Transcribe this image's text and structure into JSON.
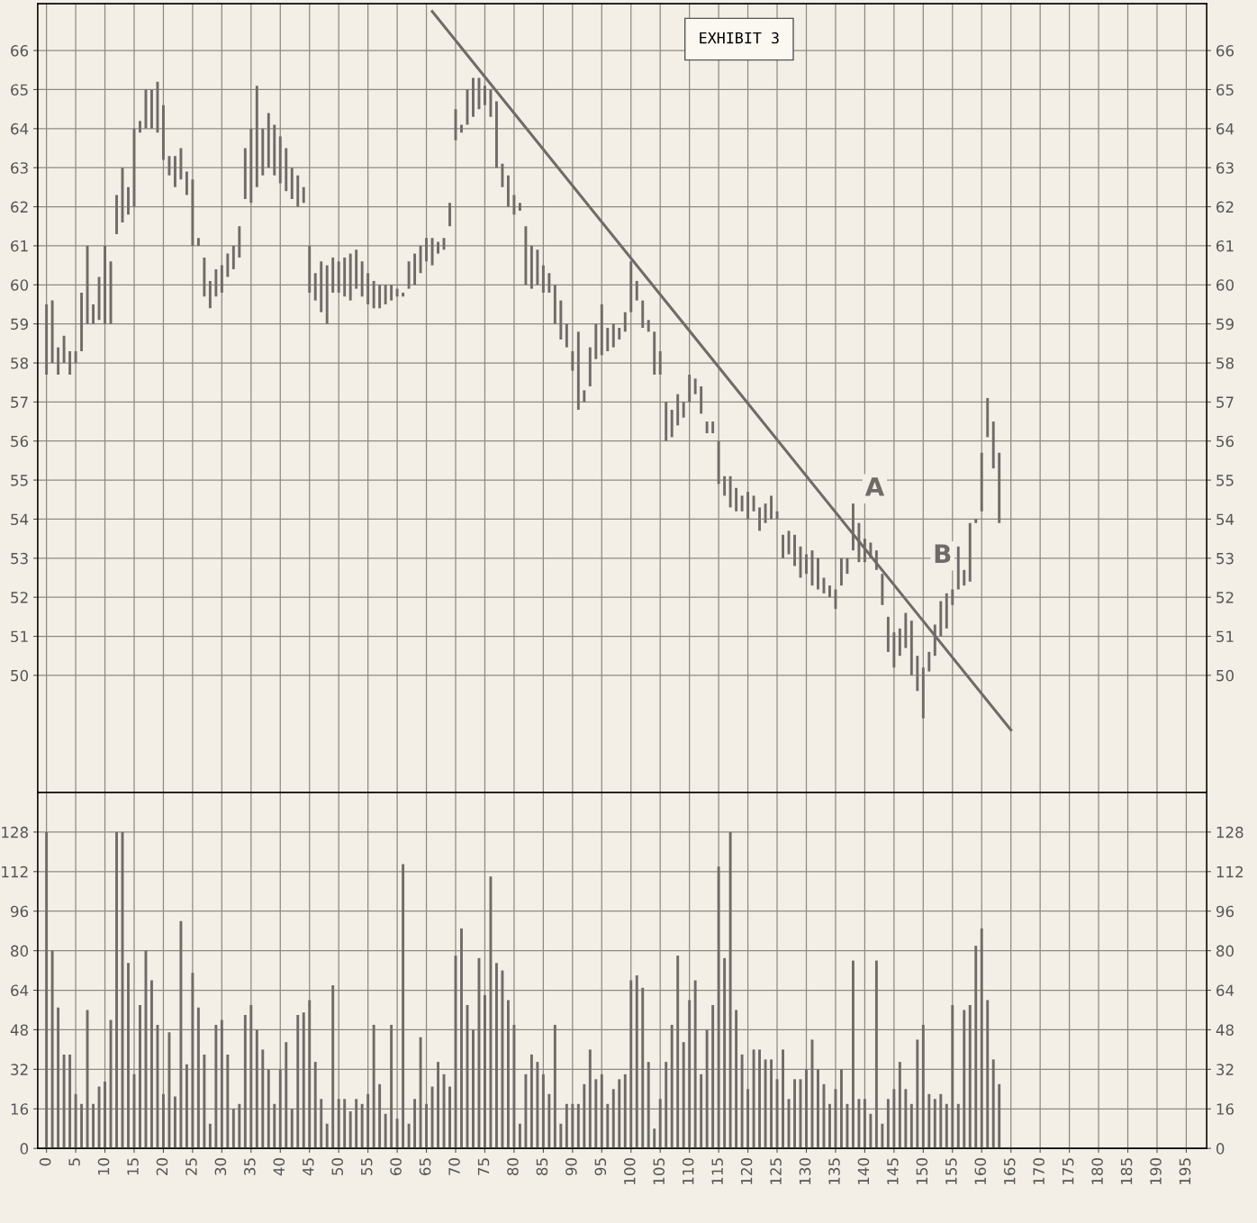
{
  "chart_data": [
    {
      "type": "bar",
      "tick_labels": "y",
      "grid": true,
      "annotations": [
        "EXHIBIT 3",
        "A",
        "B"
      ],
      "xlim": [
        -1.5,
        198.5
      ],
      "xticks": [
        0,
        5,
        10,
        15,
        20,
        25,
        30,
        35,
        40,
        45,
        50,
        55,
        60,
        65,
        70,
        75,
        80,
        85,
        90,
        95,
        100,
        105,
        110,
        115,
        120,
        125,
        130,
        135,
        140,
        145,
        150,
        155,
        160,
        165,
        170,
        175,
        180,
        185,
        190,
        195
      ],
      "ylim": [
        47.0,
        67.2
      ],
      "yticks": [
        50,
        51,
        52,
        53,
        54,
        55,
        56,
        57,
        58,
        59,
        60,
        61,
        62,
        63,
        64,
        65,
        66
      ],
      "y2lim": [
        47.0,
        67.2
      ],
      "y2ticks": [
        50,
        51,
        52,
        53,
        54,
        55,
        56,
        57,
        58,
        59,
        60,
        61,
        62,
        63,
        64,
        65,
        66
      ],
      "series": [
        {
          "color": "#6f6b68",
          "x": [
            0,
            1,
            2,
            3,
            4,
            5,
            6,
            7,
            8,
            9,
            10,
            11,
            12,
            13,
            14,
            15,
            16,
            17,
            18,
            19,
            20,
            21,
            22,
            23,
            24,
            25,
            26,
            27,
            28,
            29,
            30,
            31,
            32,
            33,
            34,
            35,
            36,
            37,
            38,
            39,
            40,
            41,
            42,
            43,
            44,
            45,
            46,
            47,
            48,
            49,
            50,
            51,
            52,
            53,
            54,
            55,
            56,
            57,
            58,
            59,
            60,
            61,
            62,
            63,
            64,
            65,
            66,
            67,
            68,
            69,
            70,
            71,
            72,
            73,
            74,
            75,
            76,
            77,
            78,
            79,
            80,
            81,
            82,
            83,
            84,
            85,
            86,
            87,
            88,
            89,
            90,
            91,
            92,
            93,
            94,
            95,
            96,
            97,
            98,
            99,
            100,
            101,
            102,
            103,
            104,
            105,
            106,
            107,
            108,
            109,
            110,
            111,
            112,
            113,
            114,
            115,
            116,
            117,
            118,
            119,
            120,
            121,
            122,
            123,
            124,
            125,
            126,
            127,
            128,
            129,
            130,
            131,
            132,
            133,
            134,
            135,
            136,
            137,
            138,
            139,
            140,
            141,
            142,
            143,
            144,
            145,
            146,
            147,
            148,
            149,
            150,
            151,
            152,
            153,
            154,
            155,
            156,
            157,
            158,
            159,
            160,
            161,
            162,
            163
          ],
          "base": [
            57.7,
            58.0,
            57.7,
            58.0,
            57.7,
            58.0,
            58.3,
            59.0,
            59.0,
            59.1,
            59.0,
            59.0,
            61.3,
            61.6,
            61.8,
            62.0,
            63.9,
            64.0,
            64.0,
            63.9,
            63.2,
            62.8,
            62.5,
            62.7,
            62.3,
            61.0,
            61.0,
            59.7,
            59.4,
            59.7,
            59.8,
            60.2,
            60.4,
            60.7,
            62.2,
            62.1,
            62.5,
            62.8,
            63.0,
            62.8,
            62.6,
            62.4,
            62.2,
            62.0,
            62.1,
            59.8,
            59.6,
            59.3,
            59.0,
            59.8,
            59.8,
            59.7,
            59.6,
            59.9,
            59.7,
            59.5,
            59.4,
            59.4,
            59.5,
            59.6,
            59.7,
            59.7,
            59.9,
            60.0,
            60.3,
            60.6,
            60.5,
            60.8,
            60.9,
            61.5,
            63.7,
            63.9,
            64.1,
            64.3,
            64.5,
            64.6,
            64.3,
            63.0,
            62.5,
            62.0,
            61.8,
            61.9,
            60.0,
            59.9,
            60.0,
            59.8,
            59.8,
            59.0,
            58.6,
            58.4,
            57.8,
            56.8,
            57.0,
            57.4,
            58.1,
            58.2,
            58.3,
            58.4,
            58.6,
            58.8,
            59.3,
            59.6,
            58.9,
            58.8,
            57.7,
            57.7,
            56.0,
            56.1,
            56.4,
            56.6,
            57.0,
            57.2,
            56.7,
            56.2,
            56.2,
            54.9,
            54.6,
            54.3,
            54.2,
            54.2,
            54.0,
            54.2,
            53.7,
            53.9,
            54.0,
            54.0,
            53.0,
            53.1,
            52.8,
            52.5,
            52.6,
            52.3,
            52.2,
            52.1,
            52.0,
            51.7,
            52.3,
            52.6,
            53.2,
            52.9,
            52.9,
            53.0,
            52.7,
            51.8,
            50.6,
            50.2,
            50.5,
            50.7,
            50.0,
            49.6,
            48.9,
            50.1,
            50.5,
            51.0,
            51.2,
            51.8,
            52.2,
            52.3,
            52.4,
            53.9,
            54.2,
            56.1,
            55.3,
            53.9
          ],
          "values": [
            1.8,
            1.6,
            0.7,
            0.7,
            0.6,
            0.3,
            1.5,
            2.0,
            0.5,
            1.1,
            2.0,
            1.6,
            1.0,
            1.4,
            0.7,
            2.0,
            0.3,
            1.0,
            1.0,
            1.3,
            1.4,
            0.5,
            0.8,
            0.8,
            0.6,
            1.7,
            0.2,
            1.0,
            0.7,
            0.7,
            0.7,
            0.6,
            0.6,
            0.8,
            1.3,
            1.9,
            2.6,
            1.2,
            1.4,
            1.3,
            1.2,
            1.1,
            0.8,
            0.8,
            0.4,
            1.2,
            0.7,
            1.3,
            1.5,
            0.9,
            0.8,
            1.0,
            1.2,
            1.0,
            0.9,
            0.8,
            0.7,
            0.6,
            0.5,
            0.4,
            0.2,
            0.1,
            0.7,
            0.8,
            0.7,
            0.6,
            0.7,
            0.3,
            0.3,
            0.6,
            0.8,
            0.2,
            0.9,
            1.0,
            0.8,
            0.5,
            0.7,
            1.7,
            0.6,
            0.8,
            0.5,
            0.2,
            1.5,
            1.1,
            0.9,
            0.7,
            0.5,
            1.0,
            1.0,
            0.6,
            0.5,
            2.0,
            0.3,
            1.0,
            0.9,
            1.3,
            0.6,
            0.6,
            0.3,
            0.5,
            1.3,
            0.5,
            0.7,
            0.3,
            1.1,
            0.6,
            1.0,
            0.7,
            0.8,
            0.4,
            0.7,
            0.4,
            0.7,
            0.3,
            0.3,
            1.1,
            0.5,
            0.8,
            0.6,
            0.4,
            0.7,
            0.4,
            0.6,
            0.5,
            0.6,
            0.2,
            0.6,
            0.6,
            0.8,
            0.8,
            0.5,
            0.9,
            0.8,
            0.4,
            0.3,
            0.5,
            0.7,
            0.4,
            1.2,
            1.0,
            0.6,
            0.4,
            0.5,
            0.8,
            0.9,
            0.9,
            0.7,
            0.9,
            1.4,
            0.9,
            1.3,
            0.5,
            0.8,
            0.9,
            0.9,
            0.4,
            1.1,
            0.4,
            1.5,
            0.1,
            1.5,
            1.0,
            1.2,
            1.8
          ]
        },
        {
          "type": "line",
          "color": "#6f6b68",
          "x": [
            66,
            165
          ],
          "values": [
            67.0,
            48.6
          ]
        }
      ]
    },
    {
      "type": "bar",
      "grid": true,
      "xlim": [
        -1.5,
        198.5
      ],
      "xticks": [
        0,
        5,
        10,
        15,
        20,
        25,
        30,
        35,
        40,
        45,
        50,
        55,
        60,
        65,
        70,
        75,
        80,
        85,
        90,
        95,
        100,
        105,
        110,
        115,
        120,
        125,
        130,
        135,
        140,
        145,
        150,
        155,
        160,
        165,
        170,
        175,
        180,
        185,
        190,
        195
      ],
      "ylim": [
        0,
        144
      ],
      "yticks": [
        0,
        16,
        32,
        48,
        64,
        80,
        96,
        112,
        128
      ],
      "y2lim": [
        0,
        144
      ],
      "y2ticks": [
        0,
        16,
        32,
        48,
        64,
        80,
        96,
        112,
        128
      ],
      "series": [
        {
          "color": "#6f6b68",
          "x": [
            0,
            1,
            2,
            3,
            4,
            5,
            6,
            7,
            8,
            9,
            10,
            11,
            12,
            13,
            14,
            15,
            16,
            17,
            18,
            19,
            20,
            21,
            22,
            23,
            24,
            25,
            26,
            27,
            28,
            29,
            30,
            31,
            32,
            33,
            34,
            35,
            36,
            37,
            38,
            39,
            40,
            41,
            42,
            43,
            44,
            45,
            46,
            47,
            48,
            49,
            50,
            51,
            52,
            53,
            54,
            55,
            56,
            57,
            58,
            59,
            60,
            61,
            62,
            63,
            64,
            65,
            66,
            67,
            68,
            69,
            70,
            71,
            72,
            73,
            74,
            75,
            76,
            77,
            78,
            79,
            80,
            81,
            82,
            83,
            84,
            85,
            86,
            87,
            88,
            89,
            90,
            91,
            92,
            93,
            94,
            95,
            96,
            97,
            98,
            99,
            100,
            101,
            102,
            103,
            104,
            105,
            106,
            107,
            108,
            109,
            110,
            111,
            112,
            113,
            114,
            115,
            116,
            117,
            118,
            119,
            120,
            121,
            122,
            123,
            124,
            125,
            126,
            127,
            128,
            129,
            130,
            131,
            132,
            133,
            134,
            135,
            136,
            137,
            138,
            139,
            140,
            141,
            142,
            143,
            144,
            145,
            146,
            147,
            148,
            149,
            150,
            151,
            152,
            153,
            154,
            155,
            156,
            157,
            158,
            159,
            160,
            161,
            162,
            163
          ],
          "values": [
            128,
            80,
            57,
            38,
            38,
            22,
            18,
            56,
            18,
            25,
            27,
            52,
            128,
            128,
            75,
            30,
            58,
            80,
            68,
            50,
            22,
            47,
            21,
            92,
            34,
            71,
            57,
            38,
            10,
            50,
            52,
            38,
            16,
            18,
            54,
            58,
            48,
            40,
            32,
            18,
            32,
            43,
            16,
            54,
            55,
            60,
            35,
            20,
            10,
            66,
            20,
            20,
            15,
            20,
            18,
            22,
            50,
            26,
            14,
            50,
            12,
            115,
            10,
            20,
            45,
            18,
            25,
            35,
            30,
            25,
            78,
            89,
            58,
            48,
            77,
            62,
            110,
            75,
            72,
            60,
            50,
            10,
            30,
            38,
            35,
            30,
            22,
            50,
            10,
            18,
            18,
            18,
            26,
            40,
            28,
            30,
            18,
            24,
            28,
            30,
            68,
            70,
            65,
            35,
            8,
            20,
            35,
            50,
            78,
            43,
            60,
            68,
            30,
            48,
            58,
            114,
            77,
            128,
            56,
            38,
            24,
            40,
            40,
            36,
            36,
            28,
            40,
            20,
            28,
            28,
            32,
            44,
            32,
            26,
            18,
            24,
            32,
            18,
            76,
            20,
            20,
            14,
            76,
            10,
            20,
            24,
            35,
            24,
            18,
            44,
            50,
            22,
            20,
            22,
            18,
            58,
            18,
            56,
            58,
            82,
            89,
            60,
            36,
            26
          ]
        }
      ]
    }
  ]
}
